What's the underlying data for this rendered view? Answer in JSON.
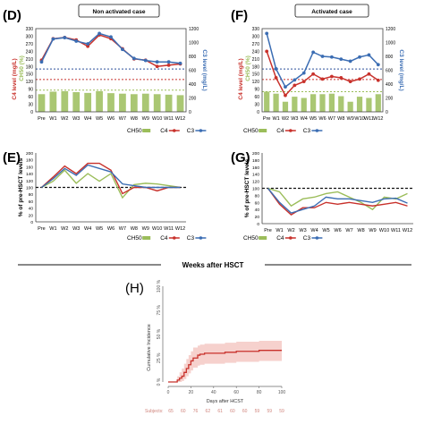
{
  "figure": {
    "x_axis_title": "Weeks after HSCT"
  },
  "colors": {
    "c4": "#c8312b",
    "c3": "#3b6db3",
    "ch50": "#9bbd5a",
    "ci": "#c8312b",
    "ci_band": "#f4c9c4",
    "ref_blue": "#2b4f9b",
    "ref_red": "#c8312b",
    "subjects": "#d0847c"
  },
  "chart_data": [
    {
      "type": "line",
      "panel": "D",
      "badge": "Non activated case",
      "categories": [
        "Pre",
        "W1",
        "W2",
        "W3",
        "W4",
        "W5",
        "W6",
        "W7",
        "W8",
        "W9",
        "W10",
        "W11",
        "W12"
      ],
      "ylabel_left": "C4 level (mg/L)",
      "ylabel_left2": "CH50 (%)",
      "ylabel_right": "C3 level (mg/L)",
      "y_left_ticks": [
        "0",
        "30",
        "60",
        "90",
        "120",
        "150",
        "180",
        "210",
        "240",
        "270",
        "300",
        "330"
      ],
      "y_right_ticks": [
        "0",
        "200",
        "400",
        "600",
        "800",
        "1000",
        "1200"
      ],
      "ylim_left": [
        0,
        330
      ],
      "ylim_right": [
        0,
        1200
      ],
      "series": [
        {
          "name": "CH50",
          "axis": "left",
          "kind": "bar",
          "values": [
            70,
            80,
            82,
            78,
            75,
            82,
            74,
            72,
            70,
            72,
            70,
            68,
            66
          ]
        },
        {
          "name": "C4",
          "axis": "left",
          "kind": "line",
          "values": [
            205,
            290,
            295,
            285,
            260,
            305,
            290,
            250,
            210,
            205,
            180,
            185,
            190
          ]
        },
        {
          "name": "C3",
          "axis": "right",
          "kind": "line",
          "values": [
            720,
            1050,
            1070,
            1020,
            980,
            1130,
            1080,
            900,
            770,
            740,
            720,
            720,
            700
          ]
        }
      ],
      "reference_lines": [
        {
          "axis": "left",
          "value": 170,
          "color": "ref_blue"
        },
        {
          "axis": "left",
          "value": 128,
          "color": "ref_red"
        },
        {
          "axis": "left",
          "value": 86,
          "color": "ch50"
        }
      ]
    },
    {
      "type": "line",
      "panel": "F",
      "badge": "Activated case",
      "categories": [
        "Pre",
        "W1",
        "W2",
        "W3",
        "W4",
        "W5",
        "W6",
        "W7",
        "W8",
        "W9",
        "W10",
        "W11",
        "W12"
      ],
      "ylabel_left": "C4 level (mg/L)",
      "ylabel_left2": "CH50 (%)",
      "ylabel_right": "C3 level (mg/L)",
      "y_left_ticks": [
        "0",
        "30",
        "60",
        "90",
        "120",
        "150",
        "180",
        "210",
        "240",
        "270",
        "300",
        "330"
      ],
      "y_right_ticks": [
        "0",
        "200",
        "400",
        "600",
        "800",
        "1000",
        "1200"
      ],
      "ylim_left": [
        0,
        330
      ],
      "ylim_right": [
        0,
        1200
      ],
      "series": [
        {
          "name": "CH50",
          "axis": "left",
          "kind": "bar",
          "values": [
            80,
            72,
            40,
            60,
            55,
            70,
            70,
            72,
            62,
            40,
            60,
            55,
            70
          ]
        },
        {
          "name": "C4",
          "axis": "left",
          "kind": "line",
          "values": [
            240,
            135,
            65,
            105,
            120,
            150,
            130,
            140,
            135,
            120,
            130,
            150,
            125
          ]
        },
        {
          "name": "C3",
          "axis": "right",
          "kind": "line",
          "values": [
            1130,
            620,
            360,
            460,
            560,
            860,
            800,
            790,
            760,
            730,
            790,
            820,
            680
          ]
        }
      ],
      "reference_lines": [
        {
          "axis": "left",
          "value": 170,
          "color": "ref_blue"
        },
        {
          "axis": "left",
          "value": 128,
          "color": "ref_red"
        },
        {
          "axis": "left",
          "value": 80,
          "color": "ch50"
        }
      ]
    },
    {
      "type": "line",
      "panel": "E",
      "categories": [
        "Pre",
        "W1",
        "W2",
        "W3",
        "W4",
        "W5",
        "W6",
        "W7",
        "W8",
        "W9",
        "W10",
        "W11",
        "W12"
      ],
      "ylabel": "% of pre-HSCT levels",
      "y_ticks": [
        "0",
        "20",
        "40",
        "60",
        "80",
        "100",
        "120",
        "140",
        "160",
        "180",
        "200"
      ],
      "ylim": [
        0,
        200
      ],
      "reference_value": 100,
      "series": [
        {
          "name": "CH50",
          "values": [
            100,
            118,
            150,
            112,
            140,
            118,
            140,
            70,
            108,
            112,
            110,
            105,
            100
          ]
        },
        {
          "name": "C4",
          "values": [
            100,
            130,
            162,
            140,
            170,
            170,
            150,
            82,
            100,
            100,
            90,
            100,
            100
          ]
        },
        {
          "name": "C3",
          "values": [
            100,
            125,
            155,
            135,
            165,
            155,
            145,
            110,
            105,
            100,
            100,
            100,
            100
          ]
        }
      ]
    },
    {
      "type": "line",
      "panel": "G",
      "categories": [
        "Pre",
        "W1",
        "W2",
        "W3",
        "W4",
        "W5",
        "W6",
        "W7",
        "W8",
        "W9",
        "W10",
        "W11",
        "W12"
      ],
      "ylabel": "% of pre-HSCT levels",
      "y_ticks": [
        "0",
        "20",
        "40",
        "60",
        "80",
        "100",
        "120",
        "140",
        "160",
        "180",
        "200"
      ],
      "ylim": [
        0,
        200
      ],
      "reference_value": 100,
      "series": [
        {
          "name": "CH50",
          "values": [
            100,
            90,
            50,
            70,
            75,
            85,
            90,
            75,
            60,
            40,
            75,
            70,
            85
          ]
        },
        {
          "name": "C4",
          "values": [
            100,
            55,
            25,
            45,
            45,
            60,
            55,
            60,
            55,
            50,
            55,
            60,
            50
          ]
        },
        {
          "name": "C3",
          "values": [
            100,
            60,
            30,
            40,
            50,
            75,
            70,
            70,
            65,
            60,
            70,
            72,
            58
          ]
        }
      ]
    },
    {
      "type": "line",
      "panel": "H",
      "xlabel": "Days after HCST",
      "ylabel": "Cumulative Incidence",
      "x_ticks": [
        "0",
        "20",
        "40",
        "60",
        "80",
        "100"
      ],
      "y_ticks": [
        "0 %",
        "25 %",
        "50 %",
        "75 %",
        "100 %"
      ],
      "xlim": [
        0,
        100
      ],
      "ylim": [
        0,
        100
      ],
      "series": [
        {
          "name": "",
          "step": true,
          "x": [
            0,
            8,
            10,
            12,
            14,
            16,
            18,
            20,
            22,
            26,
            28,
            32,
            40,
            50,
            60,
            70,
            80,
            100
          ],
          "y": [
            0,
            2,
            4,
            6,
            10,
            14,
            18,
            22,
            25,
            28,
            29,
            30,
            30,
            31,
            32,
            32,
            33,
            33
          ]
        }
      ],
      "ci_lower": [
        0,
        0,
        0,
        1,
        3,
        6,
        9,
        12,
        15,
        17,
        18,
        19,
        19,
        20,
        21,
        21,
        22,
        22
      ],
      "ci_upper": [
        0,
        6,
        10,
        14,
        19,
        24,
        28,
        32,
        36,
        38,
        39,
        40,
        40,
        41,
        42,
        42,
        43,
        43
      ],
      "subjects_label": "Subjects:",
      "subjects": [
        "65",
        "60",
        "76",
        "62",
        "61",
        "60",
        "60",
        "59",
        "59",
        "59"
      ]
    }
  ]
}
